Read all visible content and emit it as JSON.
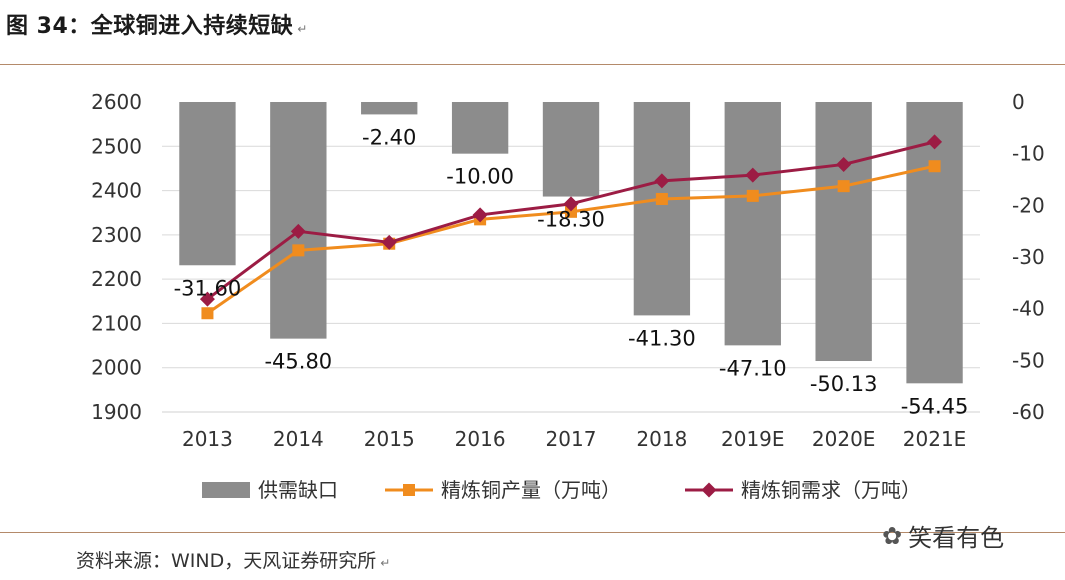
{
  "figure": {
    "title": "图 34：全球铜进入持续短缺",
    "return_mark": "↵",
    "source": "资料来源：WIND，天风证券研究所",
    "watermark": "笑看有色",
    "watermark_icon": "wechat-icon"
  },
  "colors": {
    "bar": "#8c8c8c",
    "production": "#f08c1e",
    "demand": "#9c1c44",
    "rule": "#b48a6a",
    "grid": "#d9d9d9"
  },
  "chart_data": {
    "type": "bar+line",
    "title": "",
    "categories": [
      "2013",
      "2014",
      "2015",
      "2016",
      "2017",
      "2018",
      "2019E",
      "2020E",
      "2021E"
    ],
    "left_axis": {
      "min": 1900,
      "max": 2600,
      "ticks": [
        "2600",
        "2500",
        "2400",
        "2300",
        "2200",
        "2100",
        "2000",
        "1900"
      ]
    },
    "right_axis": {
      "min": -60,
      "max": 0,
      "ticks": [
        "0",
        "-10",
        "-20",
        "-30",
        "-40",
        "-50",
        "-60"
      ]
    },
    "series": [
      {
        "name": "供需缺口",
        "type": "bar",
        "axis": "right",
        "values": [
          -31.6,
          -45.8,
          -2.4,
          -10.0,
          -18.3,
          -41.3,
          -47.1,
          -50.13,
          -54.45
        ],
        "labels": [
          "-31.60",
          "-45.80",
          "-2.40",
          "-10.00",
          "-18.30",
          "-41.30",
          "-47.10",
          "-50.13",
          "-54.45"
        ]
      },
      {
        "name": "精炼铜产量（万吨）",
        "type": "line",
        "marker": "square",
        "axis": "left",
        "values": [
          2123,
          2265,
          2280,
          2335,
          2352,
          2381,
          2388,
          2410,
          2455
        ]
      },
      {
        "name": "精炼铜需求（万吨）",
        "type": "line",
        "marker": "diamond",
        "axis": "left",
        "values": [
          2155,
          2308,
          2283,
          2345,
          2370,
          2422,
          2435,
          2459,
          2510
        ]
      }
    ],
    "legend": [
      "供需缺口",
      "精炼铜产量（万吨）",
      "精炼铜需求（万吨）"
    ],
    "legend_position": "bottom"
  }
}
